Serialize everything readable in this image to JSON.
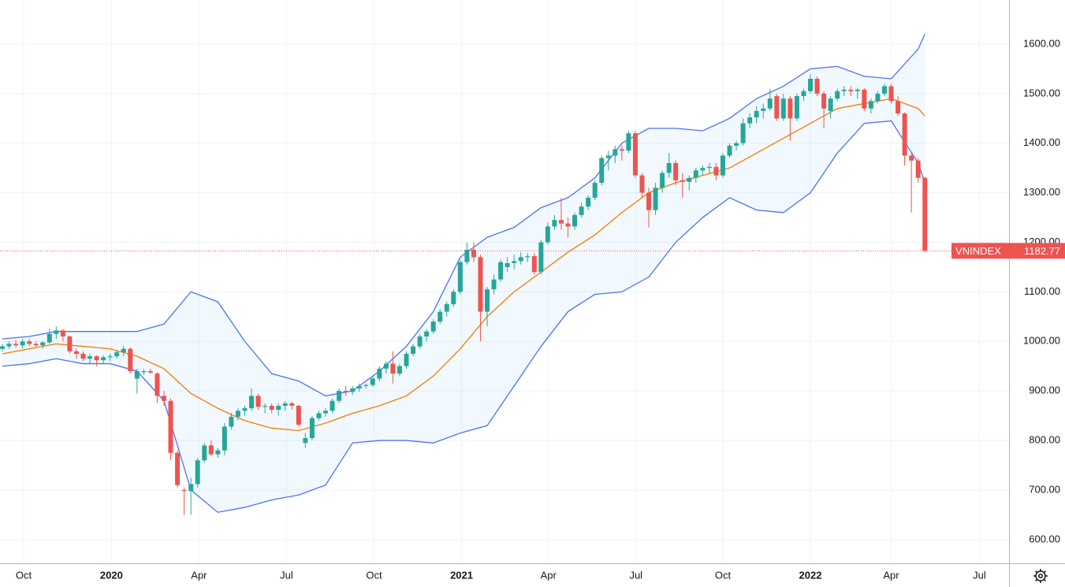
{
  "chart_data": {
    "type": "candlestick",
    "symbol": "VNINDEX",
    "last_price": 1182.77,
    "up_color": "#26a69a",
    "down_color": "#ef5350",
    "band_fill": "rgba(33,150,243,0.06)",
    "grid": true,
    "xlim": [
      -0.35,
      149.5
    ],
    "xticks": [
      {
        "value": 3.16,
        "label": "Oct"
      },
      {
        "value": 16.2,
        "label": "2020"
      },
      {
        "value": 29.2,
        "label": "Apr"
      },
      {
        "value": 42.2,
        "label": "Jul"
      },
      {
        "value": 55.2,
        "label": "Oct"
      },
      {
        "value": 68.2,
        "label": "2021"
      },
      {
        "value": 81.1,
        "label": "Apr"
      },
      {
        "value": 94.1,
        "label": "Jul"
      },
      {
        "value": 107.0,
        "label": "Oct"
      },
      {
        "value": 120.0,
        "label": "2022"
      },
      {
        "value": 132.0,
        "label": "Apr"
      },
      {
        "value": 145.1,
        "label": "Jul"
      }
    ],
    "ylim": [
      552,
      1689
    ],
    "yticks": [
      {
        "value": 600,
        "label": "600.00"
      },
      {
        "value": 700,
        "label": "700.00"
      },
      {
        "value": 800,
        "label": "800.00"
      },
      {
        "value": 900,
        "label": "900.00"
      },
      {
        "value": 1000,
        "label": "1000.00"
      },
      {
        "value": 1100,
        "label": "1100.00"
      },
      {
        "value": 1200,
        "label": "1200.00"
      },
      {
        "value": 1300,
        "label": "1300.00"
      },
      {
        "value": 1400,
        "label": "1400.00"
      },
      {
        "value": 1500,
        "label": "1500.00"
      },
      {
        "value": 1600,
        "label": "1600.00"
      }
    ],
    "x": [
      0,
      1,
      2,
      3,
      4,
      5,
      6,
      7,
      8,
      9,
      10,
      11,
      12,
      13,
      14,
      15,
      16,
      17,
      18,
      19,
      20,
      21,
      22,
      23,
      24,
      25,
      26,
      27,
      28,
      29,
      30,
      31,
      32,
      33,
      34,
      35,
      36,
      37,
      38,
      39,
      40,
      41,
      42,
      43,
      44,
      45,
      46,
      47,
      48,
      49,
      50,
      51,
      52,
      53,
      54,
      55,
      56,
      57,
      58,
      59,
      60,
      61,
      62,
      63,
      64,
      65,
      66,
      67,
      68,
      69,
      70,
      71,
      72,
      73,
      74,
      75,
      76,
      77,
      78,
      79,
      80,
      81,
      82,
      83,
      84,
      85,
      86,
      87,
      88,
      89,
      90,
      91,
      92,
      93,
      94,
      95,
      96,
      97,
      98,
      99,
      100,
      101,
      102,
      103,
      104,
      105,
      106,
      107,
      108,
      109,
      110,
      111,
      112,
      113,
      114,
      115,
      116,
      117,
      118,
      119,
      120,
      121,
      122,
      123,
      124,
      125,
      126,
      127,
      128,
      129,
      130,
      131,
      132,
      133,
      134,
      135,
      136,
      137
    ],
    "candles": [
      [
        985,
        995,
        980,
        990
      ],
      [
        990,
        1000,
        985,
        995
      ],
      [
        995,
        1003,
        988,
        992
      ],
      [
        992,
        1005,
        985,
        1000
      ],
      [
        1000,
        1005,
        990,
        995
      ],
      [
        995,
        1000,
        988,
        992
      ],
      [
        992,
        1000,
        985,
        998
      ],
      [
        998,
        1025,
        995,
        1015
      ],
      [
        1015,
        1030,
        1005,
        1022
      ],
      [
        1022,
        1025,
        1000,
        1010
      ],
      [
        1010,
        1012,
        975,
        980
      ],
      [
        980,
        985,
        965,
        975
      ],
      [
        975,
        980,
        960,
        965
      ],
      [
        965,
        975,
        955,
        970
      ],
      [
        970,
        972,
        950,
        962
      ],
      [
        962,
        972,
        955,
        968
      ],
      [
        968,
        975,
        960,
        970
      ],
      [
        970,
        982,
        965,
        978
      ],
      [
        978,
        990,
        970,
        985
      ],
      [
        985,
        988,
        935,
        940
      ],
      [
        925,
        945,
        895,
        940
      ],
      [
        938,
        945,
        932,
        940
      ],
      [
        940,
        945,
        935,
        937
      ],
      [
        935,
        938,
        875,
        890
      ],
      [
        890,
        900,
        870,
        880
      ],
      [
        880,
        885,
        760,
        775
      ],
      [
        775,
        780,
        705,
        710
      ],
      [
        700,
        705,
        650,
        698
      ],
      [
        698,
        725,
        650,
        712
      ],
      [
        712,
        765,
        705,
        760
      ],
      [
        760,
        795,
        755,
        790
      ],
      [
        790,
        800,
        768,
        772
      ],
      [
        772,
        785,
        765,
        780
      ],
      [
        780,
        835,
        770,
        828
      ],
      [
        828,
        855,
        822,
        848
      ],
      [
        848,
        865,
        840,
        860
      ],
      [
        860,
        870,
        850,
        865
      ],
      [
        865,
        905,
        860,
        890
      ],
      [
        890,
        895,
        862,
        868
      ],
      [
        868,
        875,
        855,
        870
      ],
      [
        870,
        875,
        855,
        862
      ],
      [
        862,
        875,
        850,
        870
      ],
      [
        870,
        880,
        860,
        875
      ],
      [
        875,
        878,
        862,
        870
      ],
      [
        870,
        872,
        828,
        832
      ],
      [
        795,
        815,
        785,
        805
      ],
      [
        805,
        850,
        800,
        845
      ],
      [
        845,
        860,
        840,
        855
      ],
      [
        855,
        865,
        848,
        860
      ],
      [
        860,
        885,
        855,
        880
      ],
      [
        880,
        905,
        875,
        900
      ],
      [
        900,
        910,
        890,
        898
      ],
      [
        898,
        910,
        892,
        905
      ],
      [
        905,
        915,
        898,
        910
      ],
      [
        910,
        915,
        905,
        912
      ],
      [
        912,
        930,
        908,
        925
      ],
      [
        925,
        950,
        920,
        945
      ],
      [
        945,
        960,
        935,
        955
      ],
      [
        955,
        980,
        915,
        935
      ],
      [
        935,
        955,
        930,
        950
      ],
      [
        950,
        980,
        945,
        975
      ],
      [
        975,
        995,
        970,
        990
      ],
      [
        990,
        1015,
        985,
        1010
      ],
      [
        1010,
        1025,
        1000,
        1020
      ],
      [
        1020,
        1045,
        1015,
        1040
      ],
      [
        1040,
        1065,
        1035,
        1060
      ],
      [
        1060,
        1080,
        1050,
        1075
      ],
      [
        1075,
        1105,
        1070,
        1100
      ],
      [
        1100,
        1165,
        1095,
        1160
      ],
      [
        1160,
        1200,
        1155,
        1185
      ],
      [
        1185,
        1200,
        1160,
        1170
      ],
      [
        1170,
        1175,
        1000,
        1060
      ],
      [
        1060,
        1110,
        1030,
        1105
      ],
      [
        1105,
        1135,
        1095,
        1125
      ],
      [
        1125,
        1165,
        1120,
        1160
      ],
      [
        1150,
        1170,
        1140,
        1158
      ],
      [
        1158,
        1175,
        1145,
        1162
      ],
      [
        1162,
        1180,
        1155,
        1170
      ],
      [
        1170,
        1178,
        1160,
        1172
      ],
      [
        1172,
        1178,
        1135,
        1140
      ],
      [
        1140,
        1205,
        1135,
        1200
      ],
      [
        1200,
        1240,
        1195,
        1232
      ],
      [
        1232,
        1255,
        1225,
        1245
      ],
      [
        1245,
        1290,
        1225,
        1238
      ],
      [
        1238,
        1250,
        1210,
        1232
      ],
      [
        1232,
        1260,
        1225,
        1255
      ],
      [
        1255,
        1280,
        1250,
        1272
      ],
      [
        1272,
        1295,
        1265,
        1290
      ],
      [
        1290,
        1325,
        1285,
        1320
      ],
      [
        1320,
        1375,
        1315,
        1370
      ],
      [
        1370,
        1385,
        1345,
        1375
      ],
      [
        1375,
        1395,
        1360,
        1388
      ],
      [
        1388,
        1395,
        1365,
        1385
      ],
      [
        1385,
        1425,
        1380,
        1420
      ],
      [
        1420,
        1425,
        1330,
        1335
      ],
      [
        1335,
        1340,
        1290,
        1300
      ],
      [
        1300,
        1310,
        1230,
        1265
      ],
      [
        1265,
        1320,
        1255,
        1310
      ],
      [
        1310,
        1345,
        1300,
        1340
      ],
      [
        1340,
        1380,
        1330,
        1360
      ],
      [
        1360,
        1365,
        1315,
        1325
      ],
      [
        1325,
        1340,
        1290,
        1322
      ],
      [
        1322,
        1335,
        1305,
        1330
      ],
      [
        1330,
        1350,
        1320,
        1345
      ],
      [
        1345,
        1355,
        1335,
        1350
      ],
      [
        1350,
        1360,
        1338,
        1352
      ],
      [
        1352,
        1360,
        1325,
        1335
      ],
      [
        1335,
        1380,
        1330,
        1375
      ],
      [
        1375,
        1400,
        1370,
        1395
      ],
      [
        1395,
        1405,
        1385,
        1400
      ],
      [
        1400,
        1450,
        1395,
        1440
      ],
      [
        1440,
        1460,
        1430,
        1452
      ],
      [
        1452,
        1475,
        1440,
        1465
      ],
      [
        1465,
        1480,
        1450,
        1470
      ],
      [
        1470,
        1510,
        1465,
        1490
      ],
      [
        1495,
        1500,
        1445,
        1450
      ],
      [
        1450,
        1500,
        1445,
        1490
      ],
      [
        1490,
        1495,
        1405,
        1450
      ],
      [
        1450,
        1500,
        1445,
        1495
      ],
      [
        1495,
        1510,
        1485,
        1505
      ],
      [
        1505,
        1540,
        1500,
        1530
      ],
      [
        1530,
        1535,
        1495,
        1500
      ],
      [
        1500,
        1505,
        1430,
        1470
      ],
      [
        1465,
        1495,
        1450,
        1490
      ],
      [
        1490,
        1510,
        1485,
        1505
      ],
      [
        1505,
        1515,
        1495,
        1508
      ],
      [
        1508,
        1515,
        1495,
        1505
      ],
      [
        1505,
        1512,
        1490,
        1508
      ],
      [
        1508,
        1512,
        1465,
        1470
      ],
      [
        1470,
        1490,
        1460,
        1485
      ],
      [
        1485,
        1505,
        1480,
        1500
      ],
      [
        1500,
        1520,
        1495,
        1515
      ],
      [
        1515,
        1520,
        1480,
        1485
      ],
      [
        1485,
        1495,
        1455,
        1460
      ],
      [
        1460,
        1462,
        1355,
        1375
      ],
      [
        1375,
        1380,
        1260,
        1365
      ],
      [
        1365,
        1370,
        1320,
        1330
      ],
      [
        1330,
        1332,
        1180,
        1182.77
      ]
    ],
    "bands": [
      {
        "color": "#4c72f0",
        "x": [
          0,
          4,
          8,
          12,
          16,
          20,
          24,
          28,
          32,
          36,
          40,
          44,
          48,
          52,
          56,
          60,
          64,
          68,
          72,
          76,
          80,
          84,
          88,
          92,
          96,
          100,
          104,
          108,
          112,
          116,
          120,
          124,
          128,
          132,
          136,
          137
        ],
        "values": [
          1005,
          1010,
          1020,
          1020,
          1020,
          1020,
          1035,
          1100,
          1080,
          1000,
          935,
          920,
          890,
          900,
          940,
          990,
          1060,
          1170,
          1210,
          1230,
          1270,
          1290,
          1330,
          1400,
          1430,
          1430,
          1425,
          1450,
          1490,
          1515,
          1550,
          1555,
          1535,
          1530,
          1590,
          1620
        ]
      },
      {
        "color": "#f57c00",
        "x": [
          0,
          4,
          8,
          12,
          16,
          20,
          24,
          28,
          32,
          36,
          40,
          44,
          48,
          52,
          56,
          60,
          64,
          68,
          72,
          76,
          80,
          84,
          88,
          92,
          96,
          100,
          104,
          108,
          112,
          116,
          120,
          124,
          128,
          132,
          136,
          137
        ],
        "values": [
          975,
          985,
          995,
          990,
          985,
          970,
          945,
          895,
          865,
          840,
          825,
          820,
          835,
          855,
          870,
          890,
          930,
          985,
          1050,
          1100,
          1140,
          1180,
          1215,
          1260,
          1300,
          1320,
          1335,
          1350,
          1380,
          1410,
          1440,
          1470,
          1480,
          1490,
          1470,
          1455
        ]
      },
      {
        "color": "#4c72f0",
        "x": [
          0,
          4,
          8,
          12,
          16,
          20,
          24,
          28,
          32,
          36,
          40,
          44,
          48,
          52,
          56,
          60,
          64,
          68,
          72,
          76,
          80,
          84,
          88,
          92,
          96,
          100,
          104,
          108,
          112,
          116,
          120,
          124,
          128,
          132,
          136,
          137
        ],
        "values": [
          950,
          955,
          965,
          955,
          955,
          940,
          880,
          700,
          655,
          665,
          680,
          690,
          710,
          795,
          800,
          800,
          795,
          815,
          830,
          910,
          990,
          1060,
          1095,
          1100,
          1130,
          1200,
          1250,
          1290,
          1265,
          1260,
          1300,
          1380,
          1440,
          1445,
          1360,
          1320
        ]
      }
    ]
  }
}
